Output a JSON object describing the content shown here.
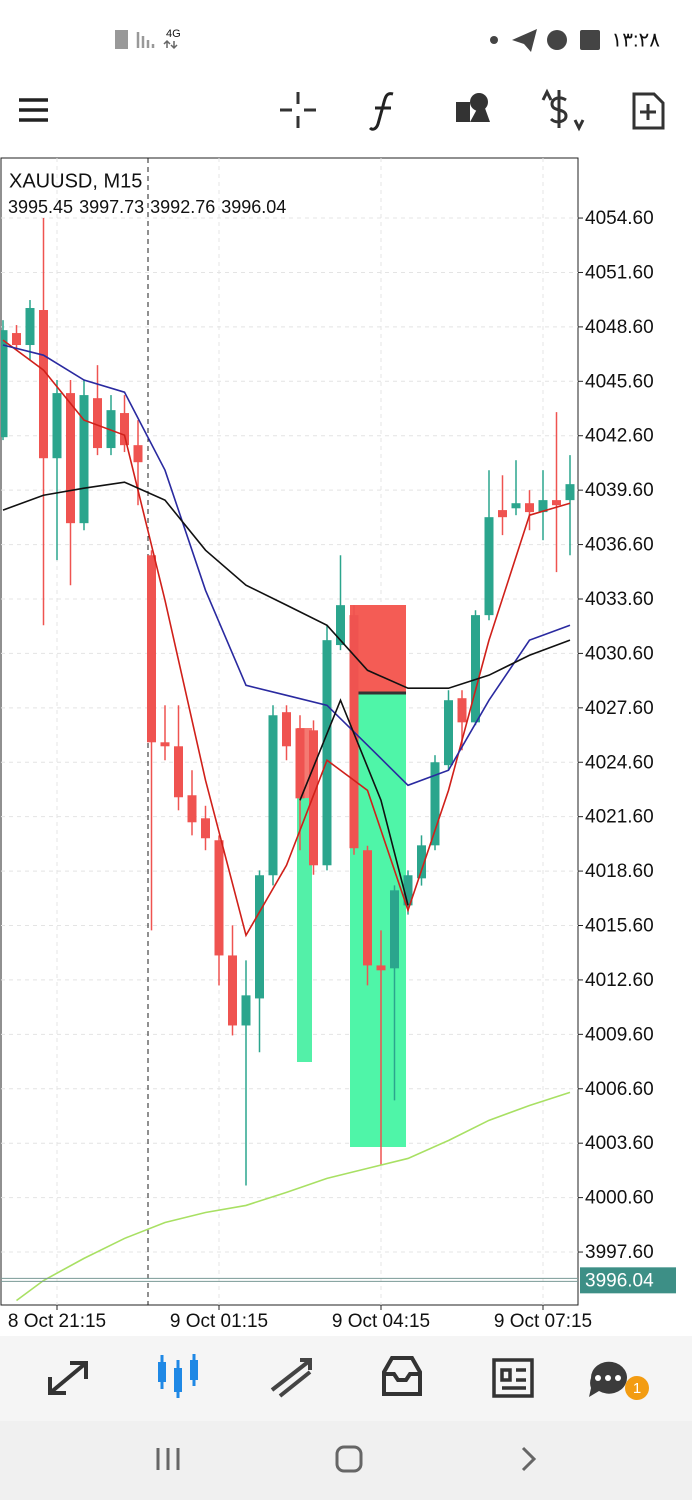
{
  "status_bar": {
    "time": "۱۳:۲۸",
    "network": "4G"
  },
  "bottom_nav": {
    "badge": 1
  },
  "chart_data": {
    "type": "candlestick",
    "title": "XAUUSD, M15",
    "header_values": [
      3995.45,
      3997.73,
      3992.76,
      3996.04
    ],
    "up_color": "#2ba58d",
    "down_color": "#ef5350",
    "grid": true,
    "open": [
      4042.52,
      4048.26,
      4047.6,
      4049.53,
      4041.36,
      4044.95,
      4037.78,
      4044.67,
      4041.92,
      4043.85,
      4042.08,
      4036.01,
      4025.7,
      4025.48,
      4022.78,
      4021.51,
      4020.3,
      4013.95,
      4010.09,
      4011.58,
      4018.37,
      4027.36,
      4026.47,
      4026.36,
      4018.92,
      4031.06,
      4032.71,
      4019.75,
      4013.4,
      4013.24,
      4016.71,
      4018.2,
      4020.02,
      4024.44,
      4028.13,
      4026.8,
      4032.71,
      4038.5,
      4038.6,
      4038.88,
      4038.39,
      4039.05,
      4039.05
    ],
    "high": [
      4048.97,
      4048.7,
      4050.08,
      4054.6,
      4045.67,
      4045.67,
      4045.67,
      4046.49,
      4044.84,
      4044.84,
      4043.46,
      4036.29,
      4027.74,
      4027.74,
      4024.16,
      4022.2,
      4020.57,
      4015.61,
      4013.68,
      4018.64,
      4027.74,
      4027.74,
      4027.19,
      4026.91,
      4032.15,
      4036.01,
      4033.26,
      4020.0,
      4015.33,
      4017.81,
      4018.64,
      4020.57,
      4024.99,
      4028.57,
      4028.57,
      4032.98,
      4040.7,
      4040.42,
      4041.25,
      4039.6,
      4040.7,
      4043.9,
      4041.53
    ],
    "low": [
      4042.36,
      4047.32,
      4046.77,
      4032.15,
      4035.74,
      4034.36,
      4037.39,
      4041.53,
      4041.53,
      4041.7,
      4038.77,
      4015.33,
      4024.71,
      4021.95,
      4020.57,
      4019.75,
      4012.3,
      4009.54,
      4001.27,
      4008.61,
      4017.81,
      4024.71,
      4019.75,
      4018.4,
      4018.64,
      4030.78,
      4019.5,
      4012.3,
      4002.37,
      4005.96,
      4016.2,
      4017.8,
      4019.75,
      4024.16,
      4025.26,
      4026.64,
      4032.43,
      4037.12,
      4038.22,
      4037.39,
      4036.84,
      4035.08,
      4036.01
    ],
    "close": [
      4048.42,
      4047.6,
      4049.64,
      4041.36,
      4044.95,
      4037.78,
      4044.84,
      4041.92,
      4044.01,
      4042.08,
      4041.14,
      4025.7,
      4025.48,
      4022.67,
      4021.29,
      4020.41,
      4013.95,
      4010.09,
      4011.75,
      4018.37,
      4027.19,
      4025.48,
      4022.61,
      4018.92,
      4031.33,
      4033.26,
      4019.86,
      4013.4,
      4013.13,
      4017.54,
      4018.37,
      4020.02,
      4024.6,
      4028.02,
      4026.8,
      4032.71,
      4038.11,
      4038.11,
      4038.88,
      4038.39,
      4039.05,
      4038.77,
      4039.93
    ],
    "series": [
      {
        "color": "#d0201a",
        "x": [
          0,
          3,
          6,
          9,
          12,
          15,
          18,
          21,
          24,
          27,
          30,
          33,
          36,
          39,
          42
        ],
        "values": [
          4047.87,
          4046.22,
          4043.46,
          4042.63,
          4033.53,
          4023.61,
          4015.06,
          4018.92,
          4024.71,
          4023.05,
          4016.44,
          4023.05,
          4031.33,
          4038.22,
          4038.88
        ]
      },
      {
        "color": "#2a2aa0",
        "x": [
          0,
          3,
          6,
          9,
          12,
          15,
          18,
          21,
          24,
          27,
          30,
          33,
          36,
          39,
          42
        ],
        "values": [
          4047.6,
          4047.04,
          4045.67,
          4045.0,
          4040.7,
          4034.08,
          4028.84,
          4028.29,
          4027.74,
          4025.54,
          4023.33,
          4024.16,
          4028.02,
          4031.33,
          4032.15
        ]
      },
      {
        "color": "#111111",
        "x": [
          0,
          3,
          6,
          9,
          12,
          15,
          18,
          21,
          24,
          27,
          30,
          33,
          36,
          39,
          42
        ],
        "values": [
          4038.5,
          4039.32,
          4039.71,
          4040.04,
          4039.05,
          4036.29,
          4034.36,
          4033.26,
          4032.15,
          4029.67,
          4028.68,
          4028.68,
          4029.4,
          4030.5,
          4031.33
        ]
      },
      {
        "color": "#111111",
        "x": [
          22,
          25,
          28,
          30
        ],
        "values": [
          4022.5,
          4028.02,
          4022.5,
          4016.71
        ]
      },
      {
        "color": "#a8e063",
        "x": [
          1,
          3,
          6,
          9,
          12,
          15,
          18,
          21,
          24,
          27,
          30,
          33,
          36,
          39,
          42
        ],
        "values": [
          3994.93,
          3996.03,
          3997.25,
          3998.35,
          3999.23,
          3999.78,
          4000.17,
          4000.89,
          4001.66,
          4002.21,
          4002.76,
          4003.75,
          4004.86,
          4005.68,
          4006.4
        ]
      }
    ],
    "ylim": [
      3994.68,
      4057.91
    ],
    "yticks": [
      {
        "value": 4054.6,
        "label": "4054.60"
      },
      {
        "value": 4051.6,
        "label": "4051.60"
      },
      {
        "value": 4048.6,
        "label": "4048.60"
      },
      {
        "value": 4045.6,
        "label": "4045.60"
      },
      {
        "value": 4042.6,
        "label": "4042.60"
      },
      {
        "value": 4039.6,
        "label": "4039.60"
      },
      {
        "value": 4036.6,
        "label": "4036.60"
      },
      {
        "value": 4033.6,
        "label": "4033.60"
      },
      {
        "value": 4030.6,
        "label": "4030.60"
      },
      {
        "value": 4027.6,
        "label": "4027.60"
      },
      {
        "value": 4024.6,
        "label": "4024.60"
      },
      {
        "value": 4021.6,
        "label": "4021.60"
      },
      {
        "value": 4018.6,
        "label": "4018.60"
      },
      {
        "value": 4015.6,
        "label": "4015.60"
      },
      {
        "value": 4012.6,
        "label": "4012.60"
      },
      {
        "value": 4009.6,
        "label": "4009.60"
      },
      {
        "value": 4006.6,
        "label": "4006.60"
      },
      {
        "value": 4003.6,
        "label": "4003.60"
      },
      {
        "value": 4000.6,
        "label": "4000.60"
      },
      {
        "value": 3997.6,
        "label": "3997.60"
      }
    ],
    "xticks": [
      {
        "value": 4,
        "label": "8 Oct 21:15"
      },
      {
        "value": 16,
        "label": "9 Oct 01:15"
      },
      {
        "value": 28,
        "label": "9 Oct 04:15"
      },
      {
        "value": 40,
        "label": "9 Oct 07:15"
      }
    ],
    "current_price": 3996.04,
    "current_price_color": "#3d8f86"
  }
}
